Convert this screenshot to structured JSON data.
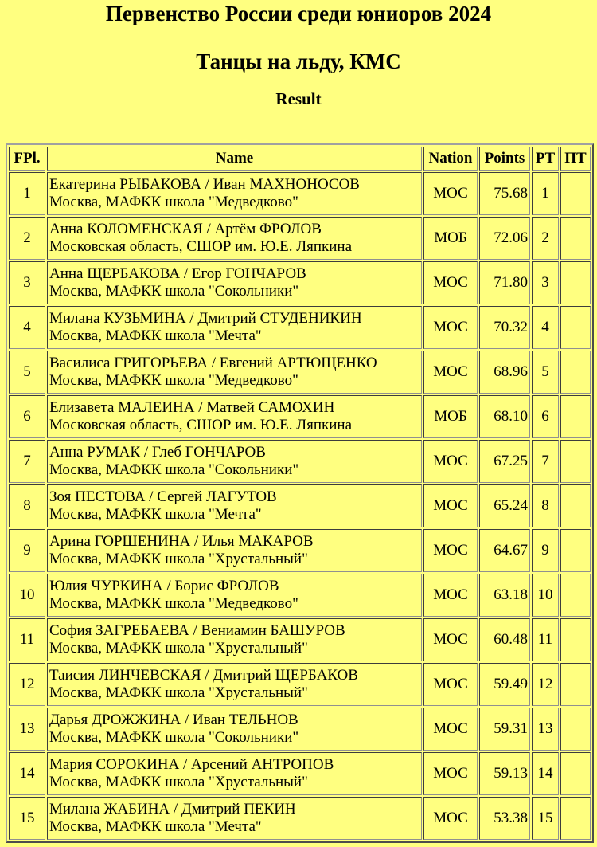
{
  "title": "Первенство России среди юниоров 2024",
  "subtitle": "Танцы на льду, КМС",
  "section": "Result",
  "columns": [
    "FPl.",
    "Name",
    "Nation",
    "Points",
    "PT",
    "ПТ"
  ],
  "rows": [
    {
      "fpl": "1",
      "name": "Екатерина РЫБАКОВА / Иван МАХНОНОСОВ",
      "club": "Москва, МАФКК школа \"Медведково\"",
      "nation": "МОС",
      "points": "75.68",
      "pt": "1",
      "pt2": ""
    },
    {
      "fpl": "2",
      "name": "Анна КОЛОМЕНСКАЯ / Артём ФРОЛОВ",
      "club": "Московская область, СШОР им. Ю.Е. Ляпкина",
      "nation": "МОБ",
      "points": "72.06",
      "pt": "2",
      "pt2": ""
    },
    {
      "fpl": "3",
      "name": "Анна ЩЕРБАКОВА / Егор ГОНЧАРОВ",
      "club": "Москва, МАФКК школа \"Сокольники\"",
      "nation": "МОС",
      "points": "71.80",
      "pt": "3",
      "pt2": ""
    },
    {
      "fpl": "4",
      "name": "Милана КУЗЬМИНА / Дмитрий СТУДЕНИКИН",
      "club": "Москва, МАФКК школа \"Мечта\"",
      "nation": "МОС",
      "points": "70.32",
      "pt": "4",
      "pt2": ""
    },
    {
      "fpl": "5",
      "name": "Василиса ГРИГОРЬЕВА / Евгений АРТЮЩЕНКО",
      "club": "Москва, МАФКК школа \"Медведково\"",
      "nation": "МОС",
      "points": "68.96",
      "pt": "5",
      "pt2": ""
    },
    {
      "fpl": "6",
      "name": "Елизавета МАЛЕИНА / Матвей САМОХИН",
      "club": "Московская область, СШОР им. Ю.Е. Ляпкина",
      "nation": "МОБ",
      "points": "68.10",
      "pt": "6",
      "pt2": ""
    },
    {
      "fpl": "7",
      "name": "Анна РУМАК / Глеб ГОНЧАРОВ",
      "club": "Москва, МАФКК школа \"Сокольники\"",
      "nation": "МОС",
      "points": "67.25",
      "pt": "7",
      "pt2": ""
    },
    {
      "fpl": "8",
      "name": "Зоя ПЕСТОВА / Сергей ЛАГУТОВ",
      "club": "Москва, МАФКК школа \"Мечта\"",
      "nation": "МОС",
      "points": "65.24",
      "pt": "8",
      "pt2": ""
    },
    {
      "fpl": "9",
      "name": "Арина ГОРШЕНИНА / Илья МАКАРОВ",
      "club": "Москва, МАФКК школа \"Хрустальный\"",
      "nation": "МОС",
      "points": "64.67",
      "pt": "9",
      "pt2": ""
    },
    {
      "fpl": "10",
      "name": "Юлия ЧУРКИНА / Борис ФРОЛОВ",
      "club": "Москва, МАФКК школа \"Медведково\"",
      "nation": "МОС",
      "points": "63.18",
      "pt": "10",
      "pt2": ""
    },
    {
      "fpl": "11",
      "name": "София ЗАГРЕБАЕВА / Вениамин БАШУРОВ",
      "club": "Москва, МАФКК школа \"Хрустальный\"",
      "nation": "МОС",
      "points": "60.48",
      "pt": "11",
      "pt2": ""
    },
    {
      "fpl": "12",
      "name": "Таисия ЛИНЧЕВСКАЯ / Дмитрий ЩЕРБАКОВ",
      "club": "Москва, МАФКК школа \"Хрустальный\"",
      "nation": "МОС",
      "points": "59.49",
      "pt": "12",
      "pt2": ""
    },
    {
      "fpl": "13",
      "name": "Дарья ДРОЖЖИНА / Иван ТЕЛЬНОВ",
      "club": "Москва, МАФКК школа \"Сокольники\"",
      "nation": "МОС",
      "points": "59.31",
      "pt": "13",
      "pt2": ""
    },
    {
      "fpl": "14",
      "name": "Мария СОРОКИНА / Арсений АНТРОПОВ",
      "club": "Москва, МАФКК школа \"Хрустальный\"",
      "nation": "МОС",
      "points": "59.13",
      "pt": "14",
      "pt2": ""
    },
    {
      "fpl": "15",
      "name": "Милана ЖАБИНА / Дмитрий ПЕКИН",
      "club": "Москва, МАФКК школа \"Мечта\"",
      "nation": "МОС",
      "points": "53.38",
      "pt": "15",
      "pt2": ""
    }
  ]
}
